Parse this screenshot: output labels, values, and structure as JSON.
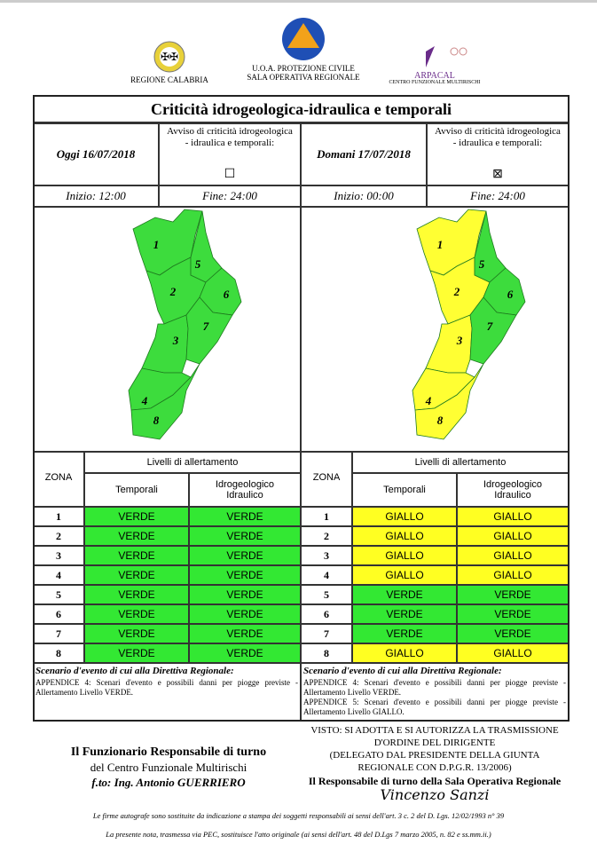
{
  "header": {
    "region": "REGIONE CALABRIA",
    "uoa": "U.O.A. PROTEZIONE CIVILE",
    "sala": "SALA OPERATIVA REGIONALE",
    "arpacal": "ARPACAL",
    "arpacal_sub": "CENTRO FUNZIONALE MULTIRISCHI"
  },
  "title": "Criticità idrogeologica-idraulica e temporali",
  "days": [
    {
      "date": "Oggi 16/07/2018",
      "avviso": "Avviso di criticità idrogeologica - idraulica e temporali:",
      "checkbox": "☐",
      "start": "Inizio: 12:00",
      "end": "Fine: 24:00",
      "map_zones": [
        {
          "label": "1",
          "color": "#3ddc3d"
        },
        {
          "label": "2",
          "color": "#3ddc3d"
        },
        {
          "label": "3",
          "color": "#3ddc3d"
        },
        {
          "label": "4",
          "color": "#3ddc3d"
        },
        {
          "label": "5",
          "color": "#3ddc3d"
        },
        {
          "label": "6",
          "color": "#3ddc3d"
        },
        {
          "label": "7",
          "color": "#3ddc3d"
        },
        {
          "label": "8",
          "color": "#3ddc3d"
        }
      ],
      "table": {
        "zona_header": "ZONA",
        "levels_header": "Livelli di allertamento",
        "col1": "Temporali",
        "col2": "Idrogeologico Idraulico",
        "rows": [
          {
            "zone": "1",
            "temporali": "VERDE",
            "idro": "VERDE",
            "color": "#33e833"
          },
          {
            "zone": "2",
            "temporali": "VERDE",
            "idro": "VERDE",
            "color": "#33e833"
          },
          {
            "zone": "3",
            "temporali": "VERDE",
            "idro": "VERDE",
            "color": "#33e833"
          },
          {
            "zone": "4",
            "temporali": "VERDE",
            "idro": "VERDE",
            "color": "#33e833"
          },
          {
            "zone": "5",
            "temporali": "VERDE",
            "idro": "VERDE",
            "color": "#33e833"
          },
          {
            "zone": "6",
            "temporali": "VERDE",
            "idro": "VERDE",
            "color": "#33e833"
          },
          {
            "zone": "7",
            "temporali": "VERDE",
            "idro": "VERDE",
            "color": "#33e833"
          },
          {
            "zone": "8",
            "temporali": "VERDE",
            "idro": "VERDE",
            "color": "#33e833"
          }
        ]
      },
      "scenario": {
        "title": "Scenario d'evento di cui alla Direttiva Regionale:",
        "lines": [
          "APPENDICE 4: Scenari d'evento e possibili danni per piogge previste - Allertamento Livello VERDE."
        ]
      }
    },
    {
      "date": "Domani 17/07/2018",
      "avviso": "Avviso di criticità idrogeologica - idraulica e temporali:",
      "checkbox": "⊠",
      "start": "Inizio: 00:00",
      "end": "Fine: 24:00",
      "map_zones": [
        {
          "label": "1",
          "color": "#ffff33"
        },
        {
          "label": "2",
          "color": "#ffff33"
        },
        {
          "label": "3",
          "color": "#ffff33"
        },
        {
          "label": "4",
          "color": "#ffff33"
        },
        {
          "label": "5",
          "color": "#3ddc3d"
        },
        {
          "label": "6",
          "color": "#3ddc3d"
        },
        {
          "label": "7",
          "color": "#3ddc3d"
        },
        {
          "label": "8",
          "color": "#ffff33"
        }
      ],
      "table": {
        "zona_header": "ZONA",
        "levels_header": "Livelli di allertamento",
        "col1": "Temporali",
        "col2": "Idrogeologico Idraulico",
        "rows": [
          {
            "zone": "1",
            "temporali": "GIALLO",
            "idro": "GIALLO",
            "color": "#ffff22"
          },
          {
            "zone": "2",
            "temporali": "GIALLO",
            "idro": "GIALLO",
            "color": "#ffff22"
          },
          {
            "zone": "3",
            "temporali": "GIALLO",
            "idro": "GIALLO",
            "color": "#ffff22"
          },
          {
            "zone": "4",
            "temporali": "GIALLO",
            "idro": "GIALLO",
            "color": "#ffff22"
          },
          {
            "zone": "5",
            "temporali": "VERDE",
            "idro": "VERDE",
            "color": "#33e833"
          },
          {
            "zone": "6",
            "temporali": "VERDE",
            "idro": "VERDE",
            "color": "#33e833"
          },
          {
            "zone": "7",
            "temporali": "VERDE",
            "idro": "VERDE",
            "color": "#33e833"
          },
          {
            "zone": "8",
            "temporali": "GIALLO",
            "idro": "GIALLO",
            "color": "#ffff22"
          }
        ]
      },
      "scenario": {
        "title": "Scenario d'evento di cui alla Direttiva Regionale:",
        "lines": [
          "APPENDICE 4: Scenari d'evento e possibili danni per piogge previste - Allertamento Livello VERDE.",
          "APPENDICE 5: Scenari d'evento e possibili danni per piogge previste - Allertamento Livello GIALLO."
        ]
      }
    }
  ],
  "footer": {
    "left": [
      "Il Funzionario Responsabile di turno",
      "del Centro Funzionale Multirischi",
      "f.to: Ing. Antonio GUERRIERO"
    ],
    "right": [
      "VISTO: SI ADOTTA E SI AUTORIZZA LA TRASMISSIONE",
      "D'ORDINE DEL DIRIGENTE",
      "(DELEGATO DAL PRESIDENTE DELLA GIUNTA",
      "REGIONALE CON D.P.G.R. 13/2006)",
      "Il Responsabile di turno della Sala Operativa Regionale"
    ],
    "signature": "Vincenzo Sanzi",
    "notes": [
      "Le firme autografe sono sostituite da indicazione a stampa dei soggetti responsabili ai sensi dell'art. 3 c. 2 del D. Lgs. 12/02/1993 n° 39",
      "La presente nota, trasmessa via PEC, sostituisce l'atto originale (ai sensi dell'art. 48 del D.Lgs 7 marzo 2005, n. 82 e ss.mm.ii.)"
    ]
  }
}
